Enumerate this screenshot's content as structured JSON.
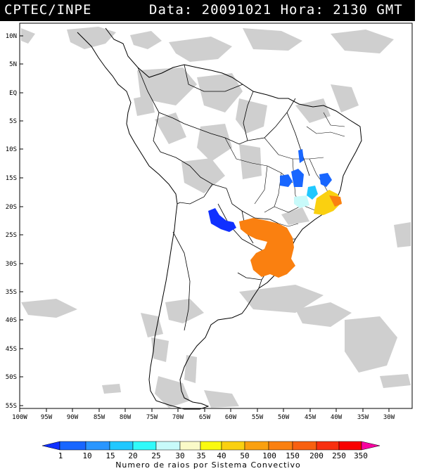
{
  "header": {
    "source": "CPTEC/INPE",
    "datetime": "Data: 20091021 Hora: 2130 GMT"
  },
  "axes": {
    "lat_labels": [
      "10N",
      "5N",
      "EQ",
      "5S",
      "10S",
      "15S",
      "20S",
      "25S",
      "30S",
      "35S",
      "40S",
      "45S",
      "50S",
      "55S"
    ],
    "lon_labels": [
      "100W",
      "95W",
      "90W",
      "85W",
      "80W",
      "75W",
      "70W",
      "65W",
      "60W",
      "55W",
      "50W",
      "45W",
      "40W",
      "35W",
      "30W"
    ]
  },
  "colorbar": {
    "title": "Numero de raios por Sistema Convectivo",
    "ticks": [
      "1",
      "10",
      "15",
      "20",
      "25",
      "30",
      "35",
      "40",
      "50",
      "100",
      "150",
      "200",
      "250",
      "350"
    ],
    "colors": [
      "#1030ff",
      "#1866ff",
      "#2a96ff",
      "#20c8ff",
      "#30fafa",
      "#c8fafa",
      "#fafac8",
      "#fafa10",
      "#fad010",
      "#faa010",
      "#fa8010",
      "#f86010",
      "#f83010",
      "#f80000",
      "#f800a0"
    ]
  },
  "map": {
    "features": {
      "cloud": "#c8c8c8",
      "borders": "#000000"
    }
  }
}
